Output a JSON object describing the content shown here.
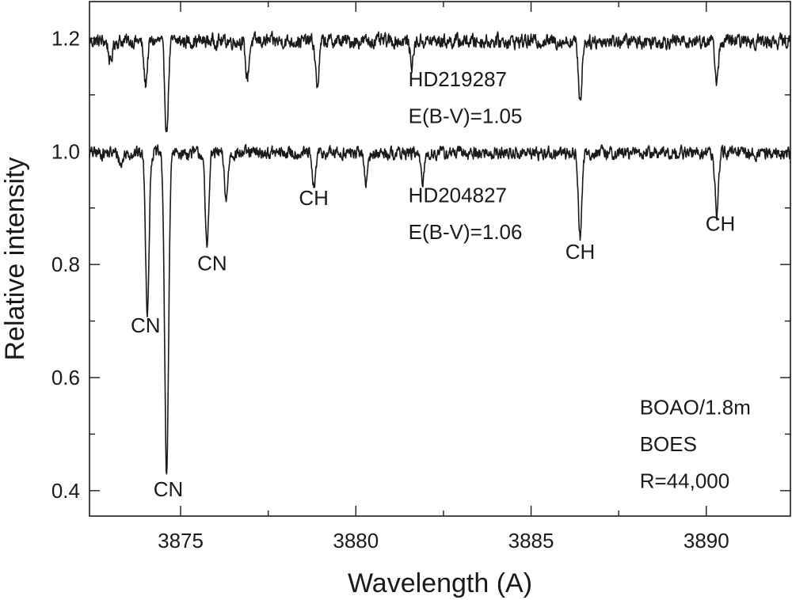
{
  "chart_data": {
    "type": "line",
    "title": "",
    "xlabel": "Wavelength (A)",
    "ylabel": "Relative intensity",
    "xlim": [
      3872.4,
      3892.4
    ],
    "ylim": [
      0.355,
      1.265
    ],
    "xticks": [
      3875,
      3880,
      3885,
      3890
    ],
    "xtick_labels": [
      "3875",
      "3880",
      "3885",
      "3890"
    ],
    "yticks": [
      0.4,
      0.6,
      0.8,
      1.0,
      1.2
    ],
    "ytick_labels": [
      "0.4",
      "0.6",
      "0.8",
      "1.0",
      "1.2"
    ],
    "y_minor_ticks": [
      0.5,
      0.7,
      0.9,
      1.1
    ],
    "x_minor_ticks": [
      3877.5,
      3882.5,
      3887.5
    ],
    "grid": false,
    "legend": "none",
    "colors": {
      "line": "#1a1a1a",
      "background": "#ffffff"
    },
    "series": [
      {
        "star": "HD219287",
        "reddening": "E(B-V)=1.05",
        "continuum": 1.195,
        "noise_amplitude": 0.012,
        "absorption_lines": [
          {
            "x": 3873.0,
            "y": 1.155
          },
          {
            "x": 3874.0,
            "y": 1.12
          },
          {
            "x": 3874.6,
            "y": 1.035
          },
          {
            "x": 3876.9,
            "y": 1.13
          },
          {
            "x": 3878.9,
            "y": 1.115
          },
          {
            "x": 3881.6,
            "y": 1.155
          },
          {
            "x": 3886.4,
            "y": 1.09
          },
          {
            "x": 3890.3,
            "y": 1.125
          }
        ]
      },
      {
        "star": "HD204827",
        "reddening": "E(B-V)=1.06",
        "continuum": 0.997,
        "noise_amplitude": 0.011,
        "absorption_lines": [
          {
            "x": 3873.3,
            "y": 0.975
          },
          {
            "x": 3874.05,
            "y": 0.72
          },
          {
            "x": 3874.6,
            "y": 0.425
          },
          {
            "x": 3875.75,
            "y": 0.83
          },
          {
            "x": 3876.3,
            "y": 0.915
          },
          {
            "x": 3878.8,
            "y": 0.935
          },
          {
            "x": 3880.3,
            "y": 0.945
          },
          {
            "x": 3881.9,
            "y": 0.945
          },
          {
            "x": 3886.4,
            "y": 0.85
          },
          {
            "x": 3890.3,
            "y": 0.89
          }
        ]
      }
    ],
    "line_labels": [
      {
        "text": "CN",
        "x": 3874.0,
        "y": 0.68
      },
      {
        "text": "CN",
        "x": 3874.65,
        "y": 0.39
      },
      {
        "text": "CN",
        "x": 3875.9,
        "y": 0.79
      },
      {
        "text": "CH",
        "x": 3878.8,
        "y": 0.905
      },
      {
        "text": "CH",
        "x": 3886.4,
        "y": 0.81
      },
      {
        "text": "CH",
        "x": 3890.4,
        "y": 0.86
      }
    ],
    "star_labels": [
      {
        "lines": [
          "HD219287",
          "E(B-V)=1.05"
        ],
        "x": 3881.5,
        "y": [
          1.115,
          1.05
        ]
      },
      {
        "lines": [
          "HD204827",
          "E(B-V)=1.06"
        ],
        "x": 3881.5,
        "y": [
          0.91,
          0.845
        ]
      }
    ],
    "instrument_labels": {
      "lines": [
        "BOAO/1.8m",
        "BOES",
        "R=44,000"
      ],
      "x": 3888.1,
      "y": [
        0.535,
        0.47,
        0.405
      ]
    }
  }
}
